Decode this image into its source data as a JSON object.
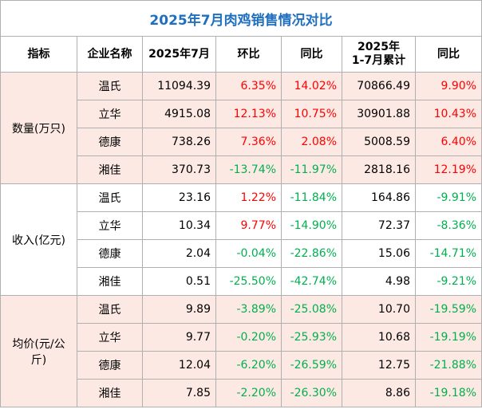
{
  "title": "2025年7月肉鸡销售情况对比",
  "table": {
    "header": [
      "指标",
      "企业名称",
      "2025年7月",
      "环比",
      "同比",
      "2025年\n1-7月累计",
      "同比"
    ],
    "groups": [
      {
        "label": "数量(万只)",
        "rows": [
          [
            "温氏",
            "11094.39",
            "6.35%",
            "14.02%",
            "70866.49",
            "9.90%"
          ],
          [
            "立华",
            "4915.08",
            "12.13%",
            "10.75%",
            "30901.88",
            "10.43%"
          ],
          [
            "德康",
            "738.26",
            "7.36%",
            "2.08%",
            "5008.59",
            "6.40%"
          ],
          [
            "湘佳",
            "370.73",
            "-13.74%",
            "-11.97%",
            "2818.16",
            "12.19%"
          ]
        ]
      },
      {
        "label": "收入(亿元)",
        "rows": [
          [
            "温氏",
            "23.16",
            "1.22%",
            "-11.84%",
            "164.86",
            "-9.91%"
          ],
          [
            "立华",
            "10.34",
            "9.77%",
            "-14.90%",
            "72.37",
            "-8.36%"
          ],
          [
            "德康",
            "2.04",
            "-0.04%",
            "-22.86%",
            "15.06",
            "-14.71%"
          ],
          [
            "湘佳",
            "0.51",
            "-25.50%",
            "-42.74%",
            "4.98",
            "-9.21%"
          ]
        ]
      },
      {
        "label": "均价(元/公斤)",
        "rows": [
          [
            "温氏",
            "9.89",
            "-3.89%",
            "-25.08%",
            "10.70",
            "-19.59%"
          ],
          [
            "立华",
            "9.77",
            "-0.20%",
            "-25.93%",
            "10.68",
            "-19.19%"
          ],
          [
            "德康",
            "12.04",
            "-6.20%",
            "-26.59%",
            "12.75",
            "-21.88%"
          ],
          [
            "湘佳",
            "7.85",
            "-2.20%",
            "-26.30%",
            "8.86",
            "-19.18%"
          ]
        ]
      }
    ]
  }
}
